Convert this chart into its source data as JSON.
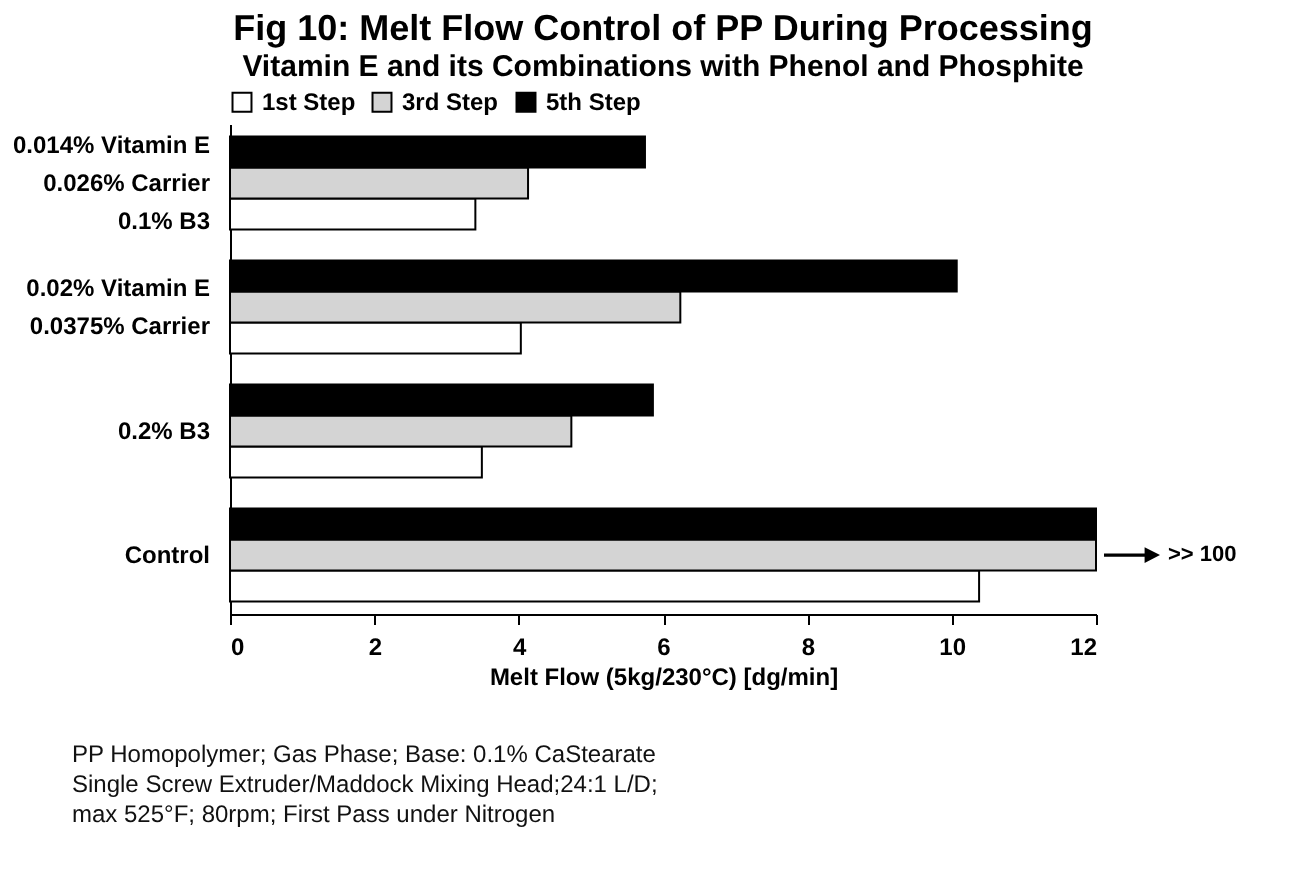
{
  "chart_data": {
    "type": "bar",
    "orientation": "horizontal",
    "title": "Fig 10: Melt Flow Control of PP During Processing",
    "subtitle": "Vitamin E and its Combinations with Phenol and Phosphite",
    "categories": [
      "0.014% Vitamin E\n0.026% Carrier\n0.1% B3",
      "0.02% Vitamin E\n0.0375% Carrier",
      "0.2% B3",
      "Control"
    ],
    "series": [
      {
        "name": "1st Step",
        "color": "#ffffff",
        "values": [
          3.4,
          4.03,
          3.49,
          10.38
        ]
      },
      {
        "name": "3rd Step",
        "color": "#d4d4d4",
        "values": [
          4.13,
          6.24,
          4.73,
          12
        ]
      },
      {
        "name": "5th Step",
        "color": "#000000",
        "values": [
          5.75,
          10.07,
          5.86,
          12
        ]
      }
    ],
    "xlabel": "Melt Flow (5kg/230°C)  [dg/min]",
    "xlim": [
      0,
      12
    ],
    "xticks": [
      0,
      2,
      4,
      6,
      8,
      10,
      12
    ],
    "grid": false,
    "legend": "top",
    "annotations": [
      ">> 100",
      "PP Homopolymer; Gas Phase; Base: 0.1% CaStearate",
      "Single Screw  Extruder/Maddock Mixing Head;24:1 L/D;",
      "max 525°F; 80rpm; First Pass under Nitrogen"
    ]
  }
}
